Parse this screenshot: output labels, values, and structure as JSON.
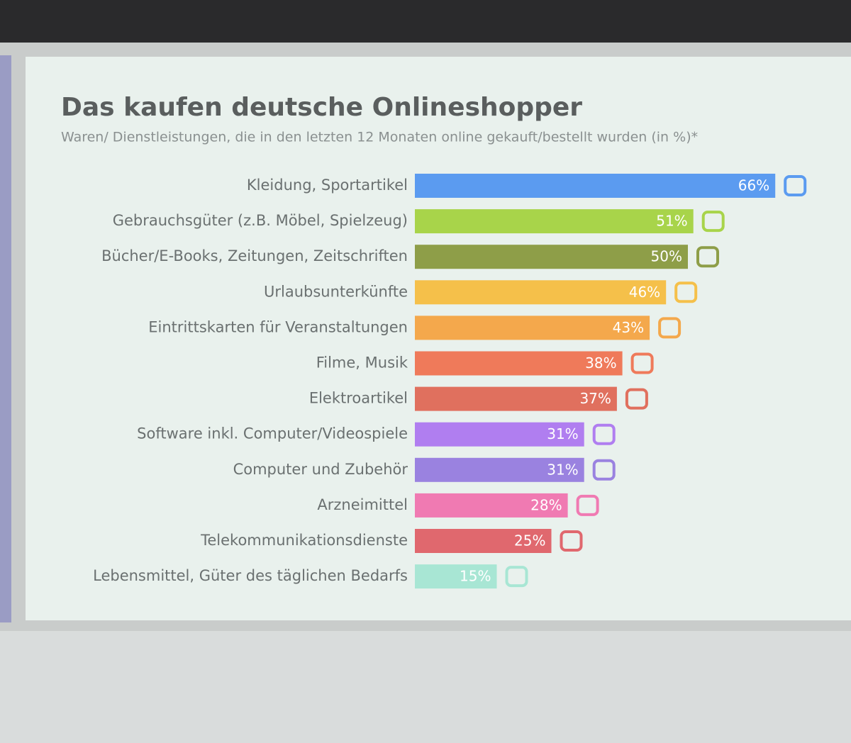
{
  "chart_data": {
    "type": "bar",
    "orientation": "horizontal",
    "title": "Das kaufen deutsche Onlineshopper",
    "subtitle": "Waren/ Dienstleistungen, die in den letzten 12 Monaten online gekauft/bestellt wurden (in %)*",
    "categories": [
      "Kleidung, Sportartikel",
      "Gebrauchsgüter (z.B. Möbel, Spielzeug)",
      "Bücher/E-Books, Zeitungen, Zeitschriften",
      "Urlaubsunterkünfte",
      "Eintrittskarten für Veranstaltungen",
      "Filme, Musik",
      "Elektroartikel",
      "Software inkl. Computer/Videospiele",
      "Computer und Zubehör",
      "Arzneimittel",
      "Telekommunikationsdienste",
      "Lebensmittel, Güter des täglichen Bedarfs"
    ],
    "values": [
      66,
      51,
      50,
      46,
      43,
      38,
      37,
      31,
      31,
      28,
      25,
      15
    ],
    "value_labels": [
      "66%",
      "51%",
      "50%",
      "46%",
      "43%",
      "38%",
      "37%",
      "31%",
      "31%",
      "28%",
      "25%",
      "15%"
    ],
    "colors": [
      "#5b9bf0",
      "#a8d44a",
      "#8e9e48",
      "#f5c04a",
      "#f4a84c",
      "#ef7a5a",
      "#e0705e",
      "#b07ef0",
      "#9a82e0",
      "#f07ab2",
      "#e0686e",
      "#a8e6d4"
    ]
  }
}
